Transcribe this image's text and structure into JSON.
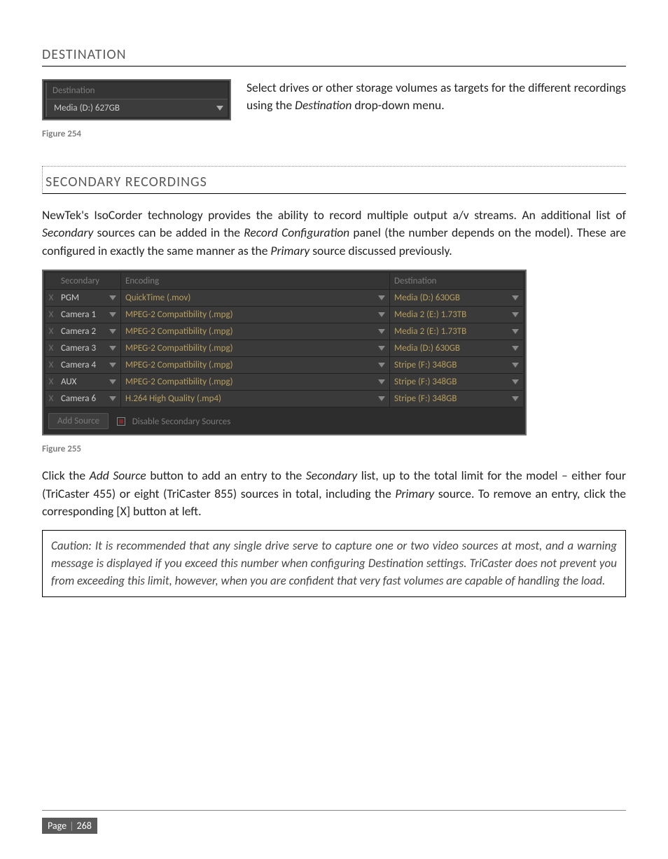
{
  "section1": {
    "heading": "DESTINATION",
    "dest_header": "Destination",
    "dest_value": "Media (D:) 627GB",
    "paragraph_parts": {
      "t1": "Select drives or other storage volumes as targets for the different recordings using the ",
      "em": "Destination",
      "t2": " drop-down menu."
    },
    "figcap": "Figure 254"
  },
  "section2": {
    "heading": "SECONDARY RECORDINGS",
    "paragraph_parts": {
      "t1": "NewTek's IsoCorder technology provides the ability to record multiple output a/v streams.  An additional list of ",
      "em1": "Secondary",
      "t2": " sources can be added in the ",
      "em2": "Record Configuration",
      "t3": " panel (the number depends on the model). These are configured in exactly the same manner as the ",
      "em3": "Primary",
      "t4": " source discussed previously."
    },
    "table": {
      "headers": {
        "secondary": "Secondary",
        "encoding": "Encoding",
        "destination": "Destination"
      },
      "rows": [
        {
          "x": "X",
          "src": "PGM",
          "enc": "QuickTime (.mov)",
          "dst": "Media (D:) 630GB"
        },
        {
          "x": "X",
          "src": "Camera 1",
          "enc": "MPEG-2 Compatibility (.mpg)",
          "dst": "Media 2 (E:) 1.73TB"
        },
        {
          "x": "X",
          "src": "Camera 2",
          "enc": "MPEG-2 Compatibility (.mpg)",
          "dst": "Media 2 (E:) 1.73TB"
        },
        {
          "x": "X",
          "src": "Camera 3",
          "enc": "MPEG-2 Compatibility (.mpg)",
          "dst": "Media (D:) 630GB"
        },
        {
          "x": "X",
          "src": "Camera 4",
          "enc": "MPEG-2 Compatibility (.mpg)",
          "dst": "Stripe (F:) 348GB"
        },
        {
          "x": "X",
          "src": "AUX",
          "enc": "MPEG-2 Compatibility (.mpg)",
          "dst": "Stripe (F:) 348GB"
        },
        {
          "x": "X",
          "src": "Camera 6",
          "enc": "H.264 High Quality (.mp4)",
          "dst": "Stripe (F:) 348GB"
        }
      ],
      "footer": {
        "add_source": "Add Source",
        "disable": "Disable Secondary Sources"
      }
    },
    "figcap": "Figure 255",
    "paragraph2_parts": {
      "t1": "Click the ",
      "em1": "Add Source",
      "t2": " button to add an entry to the ",
      "em2": "Secondary",
      "t3": " list, up to the total limit for the model – either four (TriCaster 455) or eight (TriCaster 855) sources in total, including the ",
      "em3": "Primary",
      "t4": " source.  To remove an entry, click the corresponding [X] button at left."
    },
    "caution": "Caution: It is recommended that any single drive serve to capture one or two video sources at most, and a warning message is displayed if you exceed this number when configuring Destination settings.  TriCaster does not prevent you from exceeding this limit, however, when you are confident that very fast volumes are capable of handling the load."
  },
  "footer": {
    "page_label": "Page",
    "sep": "|",
    "page_num": "268"
  },
  "colors": {
    "panel_bg": "#2d2d2d",
    "row_bg": "#3a3a3a",
    "text_muted": "#7d7d7d",
    "tint": "#b89f5c"
  }
}
